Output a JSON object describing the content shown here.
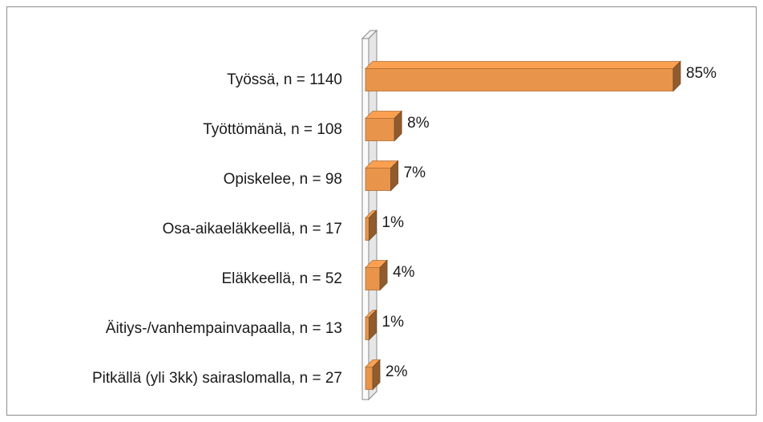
{
  "chart_data": {
    "type": "bar3d-horizontal",
    "categories": [
      "Työssä, n = 1140",
      "Työttömänä, n = 108",
      "Opiskelee, n = 98",
      "Osa-aikaeläkkeellä, n = 17",
      "Eläkkeellä, n = 52",
      "Äitiys-/vanhempainvapaalla, n = 13",
      "Pitkällä (yli 3kk) sairaslomalla, n = 27"
    ],
    "values": [
      85,
      8,
      7,
      1,
      4,
      1,
      2
    ],
    "value_labels": [
      "85%",
      "8%",
      "7%",
      "1%",
      "4%",
      "1%",
      "2%"
    ],
    "color": "#e8944a"
  }
}
